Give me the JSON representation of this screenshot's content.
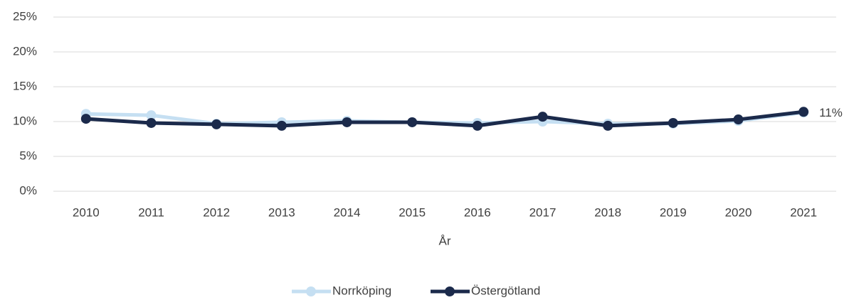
{
  "chart_data": {
    "type": "line",
    "x_label": "År",
    "categories": [
      "2010",
      "2011",
      "2012",
      "2013",
      "2014",
      "2015",
      "2016",
      "2017",
      "2018",
      "2019",
      "2020",
      "2021"
    ],
    "series": [
      {
        "name": "Norrköping",
        "color": "#c5dff2",
        "values": [
          11.1,
          10.9,
          9.7,
          9.9,
          10.1,
          9.9,
          9.8,
          10.0,
          9.7,
          9.7,
          10.1,
          11.3
        ]
      },
      {
        "name": "Östergötland",
        "color": "#1b2a4b",
        "values": [
          10.4,
          9.8,
          9.6,
          9.4,
          9.9,
          9.9,
          9.4,
          10.7,
          9.4,
          9.8,
          10.3,
          11.4
        ],
        "value_labels": [
          null,
          null,
          null,
          null,
          null,
          null,
          null,
          null,
          null,
          null,
          null,
          "11%"
        ]
      }
    ],
    "ylim": [
      0,
      25
    ],
    "yticks": [
      {
        "value": 0,
        "label": "0%"
      },
      {
        "value": 5,
        "label": "5%"
      },
      {
        "value": 10,
        "label": "10%"
      },
      {
        "value": 15,
        "label": "15%"
      },
      {
        "value": 20,
        "label": "20%"
      },
      {
        "value": 25,
        "label": "25%"
      }
    ],
    "grid": true,
    "legend": "bottom"
  }
}
